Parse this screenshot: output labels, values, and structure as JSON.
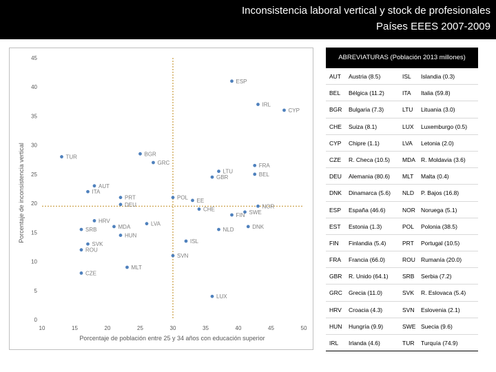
{
  "header": {
    "title": "Inconsistencia laboral vertical y stock de profesionales",
    "subtitle": "Países EEES 2007-2009"
  },
  "chart_data": {
    "type": "scatter",
    "title": "",
    "xlabel": "Porcentaje de población entre 25 y 34 años con educación superior",
    "ylabel": "Porcentaje de inconsistencia vertical",
    "xlim": [
      10,
      50
    ],
    "ylim": [
      0,
      45
    ],
    "xticks": [
      10,
      15,
      20,
      25,
      30,
      35,
      40,
      45,
      50
    ],
    "yticks": [
      0,
      5,
      10,
      15,
      20,
      25,
      30,
      35,
      40,
      45
    ],
    "reference_lines": {
      "x": 30,
      "y": 19.5
    },
    "point_color": "#4f81bd",
    "reference_color": "#c89b3c",
    "grid": false,
    "points": [
      {
        "label": "ESP",
        "x": 39,
        "y": 41
      },
      {
        "label": "IRL",
        "x": 43,
        "y": 37
      },
      {
        "label": "CYP",
        "x": 47,
        "y": 36
      },
      {
        "label": "TUR",
        "x": 13,
        "y": 28
      },
      {
        "label": "BGR",
        "x": 25,
        "y": 28.5
      },
      {
        "label": "GRC",
        "x": 27,
        "y": 27
      },
      {
        "label": "FRA",
        "x": 42.5,
        "y": 26.5
      },
      {
        "label": "LTU",
        "x": 37,
        "y": 25.5
      },
      {
        "label": "BEL",
        "x": 42.5,
        "y": 25
      },
      {
        "label": "GBR",
        "x": 36,
        "y": 24.5
      },
      {
        "label": "AUT",
        "x": 18,
        "y": 23
      },
      {
        "label": "ITA",
        "x": 17,
        "y": 22
      },
      {
        "label": "PRT",
        "x": 22,
        "y": 21
      },
      {
        "label": "POL",
        "x": 30,
        "y": 21
      },
      {
        "label": "EE",
        "x": 33,
        "y": 20.5
      },
      {
        "label": "DEU",
        "x": 22,
        "y": 19.8
      },
      {
        "label": "CHE",
        "x": 34,
        "y": 19
      },
      {
        "label": "NOR",
        "x": 43,
        "y": 19.5
      },
      {
        "label": "SWE",
        "x": 41,
        "y": 18.5
      },
      {
        "label": "FIN",
        "x": 39,
        "y": 18
      },
      {
        "label": "HRV",
        "x": 18,
        "y": 17
      },
      {
        "label": "LVA",
        "x": 26,
        "y": 16.5
      },
      {
        "label": "MDA",
        "x": 21,
        "y": 16
      },
      {
        "label": "DNK",
        "x": 41.5,
        "y": 16
      },
      {
        "label": "SRB",
        "x": 16,
        "y": 15.5
      },
      {
        "label": "NLD",
        "x": 37,
        "y": 15.5
      },
      {
        "label": "HUN",
        "x": 22,
        "y": 14.5
      },
      {
        "label": "ISL",
        "x": 32,
        "y": 13.5
      },
      {
        "label": "SVK",
        "x": 17,
        "y": 13
      },
      {
        "label": "ROU",
        "x": 16,
        "y": 12
      },
      {
        "label": "SVN",
        "x": 30,
        "y": 11
      },
      {
        "label": "MLT",
        "x": 23,
        "y": 9
      },
      {
        "label": "CZE",
        "x": 16,
        "y": 8
      },
      {
        "label": "LUX",
        "x": 36,
        "y": 4
      }
    ]
  },
  "abbreviations": {
    "title": "ABREVIATURAS (Población 2013 millones)",
    "rows": [
      [
        "AUT",
        "Austria (8.5)",
        "ISL",
        "Islandia (0.3)"
      ],
      [
        "BEL",
        "Bélgica (11.2)",
        "ITA",
        "Italia (59.8)"
      ],
      [
        "BGR",
        "Bulgaria (7.3)",
        "LTU",
        "Lituania (3.0)"
      ],
      [
        "CHE",
        "Suiza (8.1)",
        "LUX",
        "Luxemburgo (0.5)"
      ],
      [
        "CYP",
        "Chipre (1.1)",
        "LVA",
        "Letonia (2.0)"
      ],
      [
        "CZE",
        "R. Checa (10.5)",
        "MDA",
        "R. Moldavia (3.6)"
      ],
      [
        "DEU",
        "Alemania (80.6)",
        "MLT",
        "Malta (0.4)"
      ],
      [
        "DNK",
        "Dinamarca (5.6)",
        "NLD",
        "P. Bajos (16.8)"
      ],
      [
        "ESP",
        "España (46.6)",
        "NOR",
        "Noruega (5.1)"
      ],
      [
        "EST",
        "Estonia (1.3)",
        "POL",
        "Polonia (38.5)"
      ],
      [
        "FIN",
        "Finlandia (5.4)",
        "PRT",
        "Portugal (10.5)"
      ],
      [
        "FRA",
        "Francia (66.0)",
        "ROU",
        "Rumanía (20.0)"
      ],
      [
        "GBR",
        "R. Unido (64.1)",
        "SRB",
        "Serbia (7.2)"
      ],
      [
        "GRC",
        "Grecia (11.0)",
        "SVK",
        "R. Eslovaca (5.4)"
      ],
      [
        "HRV",
        "Croacia (4.3)",
        "SVN",
        "Eslovenia (2.1)"
      ],
      [
        "HUN",
        "Hungría (9.9)",
        "SWE",
        "Suecia (9.6)"
      ],
      [
        "IRL",
        "Irlanda (4.6)",
        "TUR",
        "Turquía (74.9)"
      ]
    ]
  }
}
